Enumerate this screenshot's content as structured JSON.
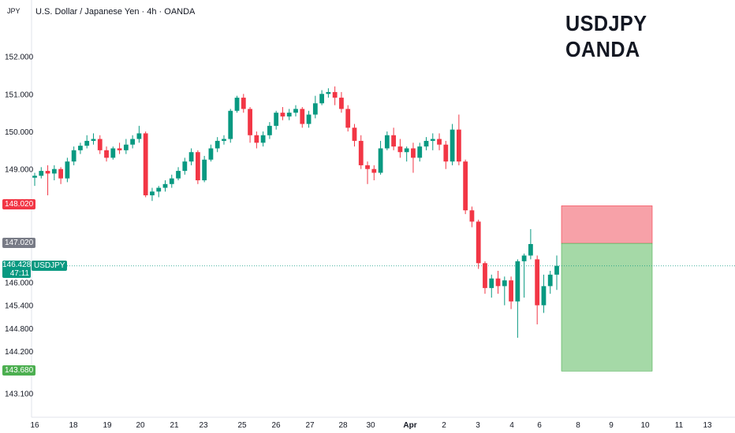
{
  "header": {
    "currency": "JPY",
    "title": "U.S. Dollar / Japanese Yen · 4h · OANDA"
  },
  "overlay": {
    "line1": "USDJPY",
    "line2": "OANDA"
  },
  "price_axis": {
    "labels": [
      "152.000",
      "151.000",
      "150.000",
      "149.000",
      "146.000",
      "145.400",
      "144.800",
      "144.200",
      "143.100"
    ]
  },
  "badges": {
    "stop": "148.020",
    "entry": "147.020",
    "current_price": "146.428",
    "countdown": "47:11",
    "symbol": "USDJPY",
    "target": "143.680"
  },
  "colors": {
    "up": "#089981",
    "down": "#f23645",
    "stop_zone": "#f7a1a8",
    "profit_zone": "#a5d9a7",
    "target_badge": "#4caf50",
    "entry_badge": "#787b86"
  },
  "chart_data": {
    "type": "candlestick",
    "symbol": "USDJPY",
    "interval": "4h",
    "x_ticks": [
      "16",
      "18",
      "19",
      "20",
      "21",
      "23",
      "25",
      "26",
      "27",
      "28",
      "30",
      "Apr",
      "2",
      "3",
      "4",
      "6",
      "8",
      "9",
      "10",
      "11",
      "13"
    ],
    "ohlc": [
      [
        148.77,
        148.9,
        148.55,
        148.82
      ],
      [
        148.82,
        149.05,
        148.75,
        148.95
      ],
      [
        148.95,
        149.1,
        148.3,
        148.88
      ],
      [
        148.88,
        149.1,
        148.7,
        149.0
      ],
      [
        149.0,
        149.05,
        148.6,
        148.75
      ],
      [
        148.75,
        149.3,
        148.65,
        149.2
      ],
      [
        149.2,
        149.6,
        149.1,
        149.5
      ],
      [
        149.5,
        149.7,
        149.4,
        149.62
      ],
      [
        149.62,
        149.9,
        149.55,
        149.75
      ],
      [
        149.75,
        149.95,
        149.65,
        149.8
      ],
      [
        149.8,
        149.9,
        149.4,
        149.5
      ],
      [
        149.5,
        149.6,
        149.2,
        149.3
      ],
      [
        149.3,
        149.6,
        149.25,
        149.55
      ],
      [
        149.55,
        149.7,
        149.4,
        149.5
      ],
      [
        149.5,
        149.8,
        149.4,
        149.65
      ],
      [
        149.65,
        149.9,
        149.55,
        149.8
      ],
      [
        149.8,
        150.15,
        149.7,
        149.95
      ],
      [
        149.95,
        150.0,
        148.25,
        148.3
      ],
      [
        148.3,
        148.5,
        148.15,
        148.4
      ],
      [
        148.4,
        148.55,
        148.25,
        148.5
      ],
      [
        148.5,
        148.7,
        148.4,
        148.6
      ],
      [
        148.6,
        148.85,
        148.5,
        148.75
      ],
      [
        148.75,
        149.05,
        148.7,
        148.95
      ],
      [
        148.95,
        149.3,
        148.85,
        149.2
      ],
      [
        149.2,
        149.55,
        149.1,
        149.45
      ],
      [
        149.45,
        149.5,
        148.6,
        148.7
      ],
      [
        148.7,
        149.35,
        148.65,
        149.25
      ],
      [
        149.25,
        149.65,
        149.2,
        149.55
      ],
      [
        149.55,
        149.85,
        149.45,
        149.75
      ],
      [
        149.75,
        149.9,
        149.65,
        149.8
      ],
      [
        149.8,
        150.6,
        149.7,
        150.55
      ],
      [
        150.55,
        150.95,
        150.5,
        150.9
      ],
      [
        150.9,
        151.0,
        150.5,
        150.6
      ],
      [
        150.6,
        150.65,
        149.7,
        149.9
      ],
      [
        149.9,
        150.0,
        149.55,
        149.7
      ],
      [
        149.7,
        150.0,
        149.6,
        149.9
      ],
      [
        149.9,
        150.25,
        149.8,
        150.15
      ],
      [
        150.15,
        150.55,
        150.05,
        150.5
      ],
      [
        150.5,
        150.65,
        150.3,
        150.4
      ],
      [
        150.4,
        150.6,
        150.3,
        150.5
      ],
      [
        150.5,
        150.7,
        150.4,
        150.6
      ],
      [
        150.6,
        150.65,
        150.1,
        150.2
      ],
      [
        150.2,
        150.55,
        150.1,
        150.45
      ],
      [
        150.45,
        150.95,
        150.35,
        150.75
      ],
      [
        150.75,
        151.1,
        150.7,
        151.0
      ],
      [
        151.0,
        151.15,
        150.9,
        151.05
      ],
      [
        151.05,
        151.2,
        150.7,
        150.9
      ],
      [
        150.9,
        151.05,
        150.5,
        150.6
      ],
      [
        150.6,
        150.7,
        150.0,
        150.1
      ],
      [
        150.1,
        150.2,
        149.6,
        149.75
      ],
      [
        149.75,
        149.9,
        149.0,
        149.1
      ],
      [
        149.1,
        149.2,
        148.6,
        149.0
      ],
      [
        149.0,
        149.1,
        148.7,
        148.9
      ],
      [
        148.9,
        149.75,
        148.85,
        149.55
      ],
      [
        149.55,
        150.0,
        149.5,
        149.9
      ],
      [
        149.9,
        150.1,
        149.5,
        149.6
      ],
      [
        149.6,
        149.8,
        149.3,
        149.45
      ],
      [
        149.45,
        149.6,
        149.2,
        149.55
      ],
      [
        149.55,
        149.7,
        148.9,
        149.3
      ],
      [
        149.3,
        149.7,
        149.2,
        149.6
      ],
      [
        149.6,
        149.85,
        149.5,
        149.75
      ],
      [
        149.75,
        149.95,
        149.5,
        149.8
      ],
      [
        149.8,
        149.95,
        149.5,
        149.65
      ],
      [
        149.65,
        149.75,
        149.0,
        149.2
      ],
      [
        149.2,
        150.2,
        149.1,
        150.05
      ],
      [
        150.05,
        150.45,
        149.1,
        149.2
      ],
      [
        149.2,
        149.25,
        147.8,
        147.9
      ],
      [
        147.9,
        148.0,
        147.45,
        147.6
      ],
      [
        147.6,
        147.65,
        146.35,
        146.5
      ],
      [
        146.5,
        146.55,
        145.7,
        145.85
      ],
      [
        145.85,
        146.2,
        145.6,
        146.1
      ],
      [
        146.1,
        146.3,
        145.7,
        145.9
      ],
      [
        145.9,
        146.15,
        145.4,
        146.05
      ],
      [
        146.05,
        146.15,
        145.3,
        145.5
      ],
      [
        145.5,
        146.6,
        144.55,
        146.55
      ],
      [
        146.55,
        146.75,
        145.6,
        146.7
      ],
      [
        146.7,
        147.4,
        146.6,
        147.0
      ],
      [
        146.6,
        146.7,
        144.9,
        145.4
      ],
      [
        145.4,
        146.2,
        145.2,
        145.9
      ],
      [
        145.9,
        146.3,
        145.7,
        146.2
      ],
      [
        146.2,
        146.7,
        145.8,
        146.43
      ]
    ],
    "positions": [
      {
        "label": "stop",
        "from": 148.02,
        "to": 147.02
      },
      {
        "label": "target",
        "from": 147.02,
        "to": 143.68
      }
    ],
    "y_ticks": [
      152.0,
      151.0,
      150.0,
      149.0,
      146.0,
      145.4,
      144.8,
      144.2,
      143.1
    ],
    "last_price": 146.428
  }
}
